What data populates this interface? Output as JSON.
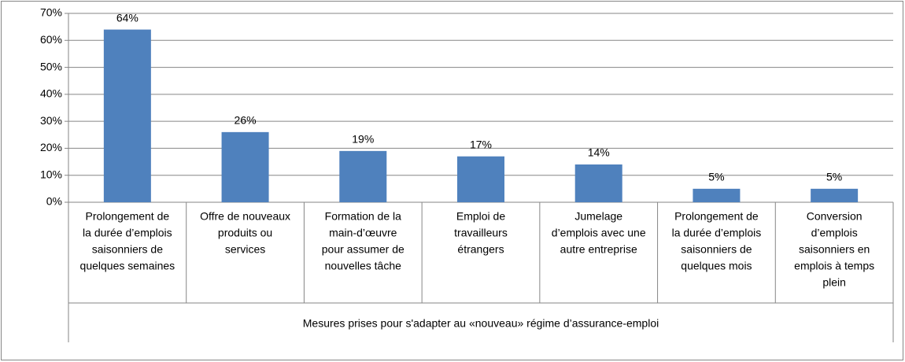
{
  "chart_data": {
    "type": "bar",
    "x_label": "Mesures prises pour s'adapter au «nouveau» régime d’assurance-emploi",
    "categories": [
      [
        "Prolongement de",
        "la durée d’emplois",
        "saisonniers de",
        "quelques semaines"
      ],
      [
        "Offre de nouveaux",
        "produits ou",
        "services"
      ],
      [
        "Formation de la",
        "main-d’œuvre",
        "pour assumer de",
        "nouvelles tâche"
      ],
      [
        "Emploi de",
        "travailleurs",
        "étrangers"
      ],
      [
        "Jumelage",
        "d’emplois avec une",
        "autre entreprise"
      ],
      [
        "Prolongement de",
        "la durée d’emplois",
        "saisonniers de",
        "quelques mois"
      ],
      [
        "Conversion",
        "d’emplois",
        "saisonniers en",
        "emplois à temps",
        "plein"
      ]
    ],
    "values": [
      64,
      26,
      19,
      17,
      14,
      5,
      5
    ],
    "value_labels": [
      "64%",
      "26%",
      "19%",
      "17%",
      "14%",
      "5%",
      "5%"
    ],
    "color": "#4f81bd",
    "ylim": [
      0,
      70
    ],
    "yticks": [
      {
        "value": 0,
        "label": "0%"
      },
      {
        "value": 10,
        "label": "10%"
      },
      {
        "value": 20,
        "label": "20%"
      },
      {
        "value": 30,
        "label": "30%"
      },
      {
        "value": 40,
        "label": "40%"
      },
      {
        "value": 50,
        "label": "50%"
      },
      {
        "value": 60,
        "label": "60%"
      },
      {
        "value": 70,
        "label": "70%"
      }
    ],
    "grid": true
  }
}
